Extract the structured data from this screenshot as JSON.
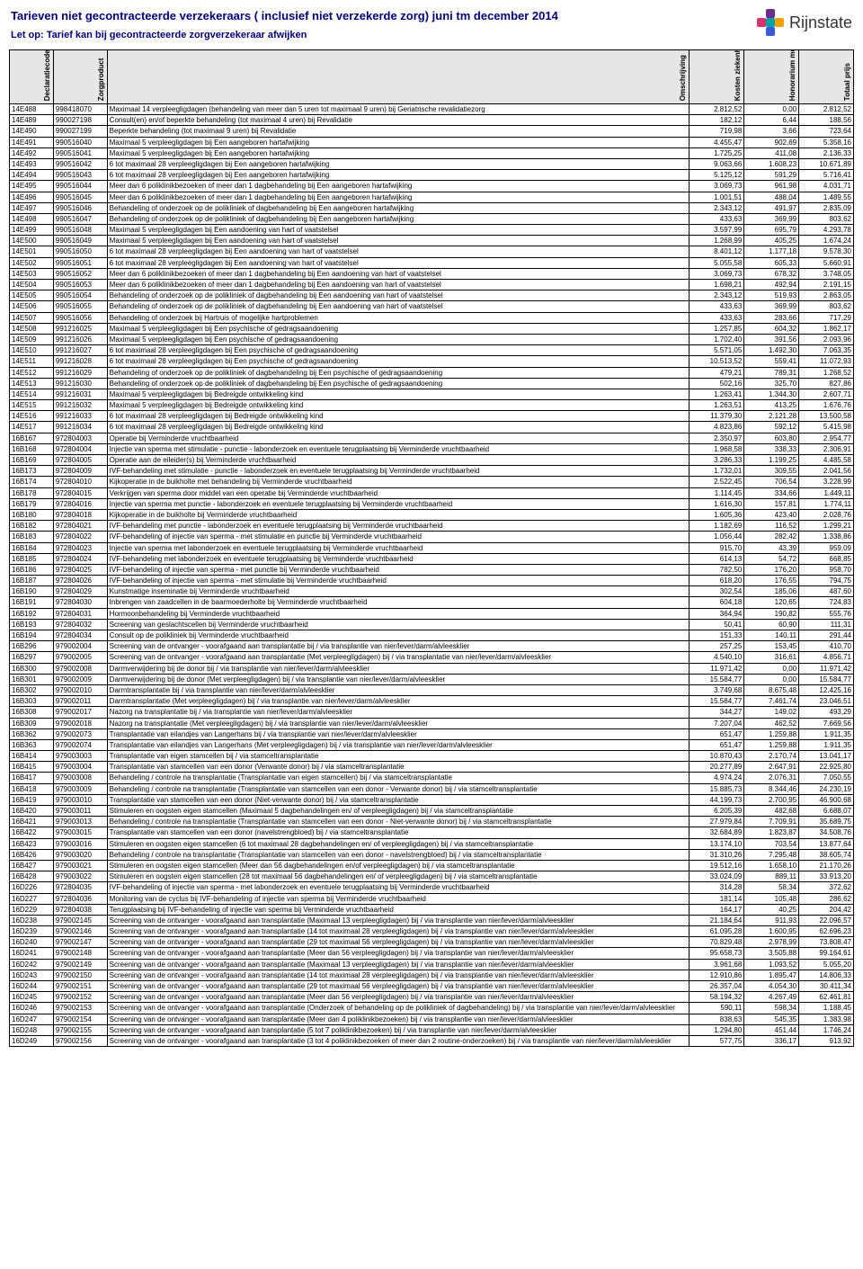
{
  "header": {
    "title": "Tarieven niet gecontracteerde verzekeraars ( inclusief niet verzekerde zorg) juni tm december 2014",
    "subtitle": "Let op: Tarief kan bij gecontracteerde zorgverzekeraar afwijken",
    "title_color": "#000080",
    "logo_name": "Rijnstate",
    "logo_colors": [
      "#6b2d8e",
      "#d6336c",
      "#00a3a3",
      "#f59f00",
      "#3b5bdb"
    ]
  },
  "columns": [
    {
      "key": "decl",
      "label": "Declaratiecode"
    },
    {
      "key": "zorg",
      "label": "Zorgproduct"
    },
    {
      "key": "oms",
      "label": "Omschrijving"
    },
    {
      "key": "kosten",
      "label": "Kosten ziekenhuis"
    },
    {
      "key": "hon",
      "label": "Honorarium medisch specialisten"
    },
    {
      "key": "tot",
      "label": "Totaal prijs"
    }
  ],
  "rows": [
    [
      "14E488",
      "998418070",
      "Maximaal 14 verpleegligdagen (behandeling van meer dan 5 uren tot maximaal 9 uren) bij Geriatrische revalidatiezorg",
      "2.812,52",
      "0,00",
      "2.812,52"
    ],
    [
      "14E489",
      "990027198",
      "Consult(en) en/of beperkte behandeling (tot maximaal 4 uren) bij Revalidatie",
      "182,12",
      "6,44",
      "188,56"
    ],
    [
      "14E490",
      "990027199",
      "Beperkte behandeling (tot maximaal 9 uren) bij Revalidatie",
      "719,98",
      "3,66",
      "723,64"
    ],
    [
      "14E491",
      "990516040",
      "Maximaal 5 verpleegligdagen bij Een aangeboren hartafwijking",
      "4.455,47",
      "902,69",
      "5.358,16"
    ],
    [
      "14E492",
      "990516041",
      "Maximaal 5 verpleegligdagen bij Een aangeboren hartafwijking",
      "1.725,25",
      "411,08",
      "2.136,33"
    ],
    [
      "14E493",
      "990516042",
      "6 tot maximaal 28 verpleegligdagen bij Een aangeboren hartafwijking",
      "9.063,66",
      "1.608,23",
      "10.671,89"
    ],
    [
      "14E494",
      "990516043",
      "6 tot maximaal 28 verpleegligdagen bij Een aangeboren hartafwijking",
      "5.125,12",
      "591,29",
      "5.716,41"
    ],
    [
      "14E495",
      "990516044",
      "Meer dan 6 poliklinikbezoeken of meer dan 1 dagbehandeling bij Een aangeboren hartafwijking",
      "3.069,73",
      "961,98",
      "4.031,71"
    ],
    [
      "14E496",
      "990516045",
      "Meer dan 6 poliklinikbezoeken of meer dan 1 dagbehandeling bij Een aangeboren hartafwijking",
      "1.001,51",
      "488,04",
      "1.489,55"
    ],
    [
      "14E497",
      "990516046",
      "Behandeling of onderzoek op de polikliniek of dagbehandeling bij Een aangeboren hartafwijking",
      "2.343,12",
      "491,97",
      "2.835,09"
    ],
    [
      "14E498",
      "990516047",
      "Behandeling of onderzoek op de polikliniek of dagbehandeling bij Een aangeboren hartafwijking",
      "433,63",
      "369,99",
      "803,62"
    ],
    [
      "14E499",
      "990516048",
      "Maximaal 5 verpleegligdagen bij Een aandoening van hart of vaatstelsel",
      "3.597,99",
      "695,79",
      "4.293,78"
    ],
    [
      "14E500",
      "990516049",
      "Maximaal 5 verpleegligdagen bij Een aandoening van hart of vaatstelsel",
      "1.268,99",
      "405,25",
      "1.674,24"
    ],
    [
      "14E501",
      "990516050",
      "6 tot maximaal 28 verpleegligdagen bij Een aandoening van hart of vaatstelsel",
      "8.401,12",
      "1.177,18",
      "9.578,30"
    ],
    [
      "14E502",
      "990516051",
      "6 tot maximaal 28 verpleegligdagen bij Een aandoening van hart of vaatstelsel",
      "5.055,58",
      "605,33",
      "5.660,91"
    ],
    [
      "14E503",
      "990516052",
      "Meer dan 6 poliklinikbezoeken of meer dan 1 dagbehandeling bij Een aandoening van hart of vaatstelsel",
      "3.069,73",
      "678,32",
      "3.748,05"
    ],
    [
      "14E504",
      "990516053",
      "Meer dan 6 poliklinikbezoeken of meer dan 1 dagbehandeling bij Een aandoening van hart of vaatstelsel",
      "1.698,21",
      "492,94",
      "2.191,15"
    ],
    [
      "14E505",
      "990516054",
      "Behandeling of onderzoek op de polikliniek of dagbehandeling bij Een aandoening van hart of vaatstelsel",
      "2.343,12",
      "519,93",
      "2.863,05"
    ],
    [
      "14E506",
      "990516055",
      "Behandeling of onderzoek op de polikliniek of dagbehandeling bij Een aandoening van hart of vaatstelsel",
      "433,63",
      "369,99",
      "803,62"
    ],
    [
      "14E507",
      "990516056",
      "Behandeling of onderzoek bij Hartruis of mogelijke hartproblemen",
      "433,63",
      "283,66",
      "717,29"
    ],
    [
      "14E508",
      "991216025",
      "Maximaal 5 verpleegligdagen bij Een psychische of gedragsaandoening",
      "1.257,85",
      "604,32",
      "1.862,17"
    ],
    [
      "14E509",
      "991216026",
      "Maximaal 5 verpleegligdagen bij Een psychische of gedragsaandoening",
      "1.702,40",
      "391,56",
      "2.093,96"
    ],
    [
      "14E510",
      "991216027",
      "6 tot maximaal 28 verpleegligdagen bij Een psychische of gedragsaandoening",
      "5.571,05",
      "1.492,30",
      "7.063,35"
    ],
    [
      "14E511",
      "991216028",
      "6 tot maximaal 28 verpleegligdagen bij Een psychische of gedragsaandoening",
      "10.513,52",
      "559,41",
      "11.072,93"
    ],
    [
      "14E512",
      "991216029",
      "Behandeling of onderzoek op de polikliniek of dagbehandeling bij Een psychische of gedragsaandoening",
      "479,21",
      "789,31",
      "1.268,52"
    ],
    [
      "14E513",
      "991216030",
      "Behandeling of onderzoek op de polikliniek of dagbehandeling bij Een psychische of gedragsaandoening",
      "502,16",
      "325,70",
      "827,86"
    ],
    [
      "14E514",
      "991216031",
      "Maximaal 5 verpleegligdagen bij Bedreigde ontwikkeling kind",
      "1.263,41",
      "1.344,30",
      "2.607,71"
    ],
    [
      "14E515",
      "991216032",
      "Maximaal 5 verpleegligdagen bij Bedreigde ontwikkeling kind",
      "1.263,51",
      "413,25",
      "1.676,76"
    ],
    [
      "14E516",
      "991216033",
      "6 tot maximaal 28 verpleegligdagen bij Bedreigde ontwikkeling kind",
      "11.379,30",
      "2.121,28",
      "13.500,58"
    ],
    [
      "14E517",
      "991216034",
      "6 tot maximaal 28 verpleegligdagen bij Bedreigde ontwikkeling kind",
      "4.823,86",
      "592,12",
      "5.415,98"
    ],
    [
      "16B167",
      "972804003",
      "Operatie bij Verminderde vruchtbaarheid",
      "2.350,97",
      "603,80",
      "2.954,77"
    ],
    [
      "16B168",
      "972804004",
      "Injectie van sperma met stimulatie - punctie - labonderzoek en eventuele terugplaatsing bij Verminderde vruchtbaarheid",
      "1.968,58",
      "338,33",
      "2.306,91"
    ],
    [
      "16B169",
      "972804005",
      "Operatie aan de eileider(s) bij Verminderde vruchtbaarheid",
      "3.286,33",
      "1.199,25",
      "4.485,58"
    ],
    [
      "16B173",
      "972804009",
      "IVF-behandeling met stimulatie - punctie - labonderzoek en eventuele terugplaatsing bij Verminderde vruchtbaarheid",
      "1.732,01",
      "309,55",
      "2.041,56"
    ],
    [
      "16B174",
      "972804010",
      "Kijkoperatie in de buikholte met behandeling bij Verminderde vruchtbaarheid",
      "2.522,45",
      "706,54",
      "3.228,99"
    ],
    [
      "16B178",
      "972804015",
      "Verkrijgen van sperma door middel van een operatie bij Verminderde vruchtbaarheid",
      "1.114,45",
      "334,66",
      "1.449,11"
    ],
    [
      "16B179",
      "972804016",
      "Injectie van sperma met punctie - labonderzoek en eventuele terugplaatsing bij Verminderde vruchtbaarheid",
      "1.616,30",
      "157,81",
      "1.774,11"
    ],
    [
      "16B180",
      "972804018",
      "Kijkoperatie in de buikholte bij Verminderde vruchtbaarheid",
      "1.605,36",
      "423,40",
      "2.028,76"
    ],
    [
      "16B182",
      "972804021",
      "IVF-behandeling met punctie - labonderzoek en eventuele terugplaatsing bij Verminderde vruchtbaarheid",
      "1.182,69",
      "116,52",
      "1.299,21"
    ],
    [
      "16B183",
      "972804022",
      "IVF-behandeling of injectie van sperma - met stimulatie en punctie bij Verminderde vruchtbaarheid",
      "1.056,44",
      "282,42",
      "1.338,86"
    ],
    [
      "16B184",
      "972804023",
      "Injectie van sperma met labonderzoek en eventuele terugplaatsing bij Verminderde vruchtbaarheid",
      "915,70",
      "43,39",
      "959,09"
    ],
    [
      "16B185",
      "972804024",
      "IVF-behandeling met labonderzoek en eventuele terugplaatsing bij Verminderde vruchtbaarheid",
      "614,13",
      "54,72",
      "668,85"
    ],
    [
      "16B186",
      "972804025",
      "IVF-behandeling of injectie van sperma - met punctie bij Verminderde vruchtbaarheid",
      "782,50",
      "176,20",
      "958,70"
    ],
    [
      "16B187",
      "972804026",
      "IVF-behandeling of injectie van sperma - met stimulatie bij Verminderde vruchtbaarheid",
      "618,20",
      "176,55",
      "794,75"
    ],
    [
      "16B190",
      "972804029",
      "Kunstmatige inseminatie bij Verminderde vruchtbaarheid",
      "302,54",
      "185,06",
      "487,60"
    ],
    [
      "16B191",
      "972804030",
      "Inbrengen van zaadcellen in de baarmoederholte bij Verminderde vruchtbaarheid",
      "604,18",
      "120,65",
      "724,83"
    ],
    [
      "16B192",
      "972804031",
      "Hormoonbehandeling bij Verminderde vruchtbaarheid",
      "364,94",
      "190,82",
      "555,76"
    ],
    [
      "16B193",
      "972804032",
      "Screening van geslachtscellen bij Verminderde vruchtbaarheid",
      "50,41",
      "60,90",
      "111,31"
    ],
    [
      "16B194",
      "972804034",
      "Consult op de polikliniek bij Verminderde vruchtbaarheid",
      "151,33",
      "140,11",
      "291,44"
    ],
    [
      "16B296",
      "979002004",
      "Screening van de ontvanger - voorafgaand aan transplantatie bij / via transplantie van nier/lever/darm/alvleesklier",
      "257,25",
      "153,45",
      "410,70"
    ],
    [
      "16B297",
      "979002005",
      "Screening van de ontvanger - voorafgaand aan transplantatie (Met verpleegligdagen) bij / via transplantatie van nier/lever/darm/alvleesklier",
      "4.540,10",
      "316,61",
      "4.856,71"
    ],
    [
      "16B300",
      "979002008",
      "Darmverwijdering bij de donor bij / via transplantie van nier/lever/darm/alvleesklier",
      "11.971,42",
      "0,00",
      "11.971,42"
    ],
    [
      "16B301",
      "979002009",
      "Darmverwijdering bij de donor (Met verpleegligdagen) bij / via transplantie van nier/lever/darm/alvleesklier",
      "15.584,77",
      "0,00",
      "15.584,77"
    ],
    [
      "16B302",
      "979002010",
      "Darmtransplantatie bij / via transplantie van nier/lever/darm/alvleesklier",
      "3.749,68",
      "8.675,48",
      "12.425,16"
    ],
    [
      "16B303",
      "979002011",
      "Darmtransplantatie (Met verpleegligdagen) bij / via transplantie van nier/lever/darm/alvleesklier",
      "15.584,77",
      "7.461,74",
      "23.046,51"
    ],
    [
      "16B308",
      "979002017",
      "Nazorg na transplantatie bij / via transplantie van nier/lever/darm/alvleesklier",
      "344,27",
      "149,02",
      "493,29"
    ],
    [
      "16B309",
      "979002018",
      "Nazorg na transplantatie (Met verpleegligdagen) bij / via transplantie van nier/lever/darm/alvleesklier",
      "7.207,04",
      "462,52",
      "7.669,56"
    ],
    [
      "16B362",
      "979002073",
      "Transplantatie van eilandjes van Langerhans bij / via transplantie van nier/lever/darm/alvleesklier",
      "651,47",
      "1.259,88",
      "1.911,35"
    ],
    [
      "16B363",
      "979002074",
      "Transplantatie van eilandjes van Langerhans (Met verpleegligdagen) bij / via transplantie van nier/lever/darm/alvleesklier",
      "651,47",
      "1.259,88",
      "1.911,35"
    ],
    [
      "16B414",
      "979003003",
      "Transplantatie van eigen stamcellen bij / via stamceltransplantatie",
      "10.870,43",
      "2.170,74",
      "13.041,17"
    ],
    [
      "16B415",
      "979003004",
      "Transplantatie van stamcellen van een donor (Verwante donor) bij / via stamceltransplantatie",
      "20.277,89",
      "2.647,91",
      "22.925,80"
    ],
    [
      "16B417",
      "979003008",
      "Behandeling / controle na transplantatie (Transplantatie van eigen stamcellen) bij / via stamceltransplantatie",
      "4.974,24",
      "2.076,31",
      "7.050,55"
    ],
    [
      "16B418",
      "979003009",
      "Behandeling / controle na transplantatie (Transplantatie van stamcellen van een donor - Verwante donor) bij / via stamceltransplantatie",
      "15.885,73",
      "8.344,46",
      "24.230,19"
    ],
    [
      "16B419",
      "979003010",
      "Transplantatie van stamcellen van een donor (Niet-verwante donor) bij / via stamceltransplantatie",
      "44.199,73",
      "2.700,95",
      "46.900,68"
    ],
    [
      "16B420",
      "979003011",
      "Stimuleren en oogsten eigen stamcellen (Maximaal 5 dagbehandelingen en/ of verpleegligdagen) bij / via stamceltransplantatie",
      "6.205,39",
      "482,68",
      "6.688,07"
    ],
    [
      "16B421",
      "979003013",
      "Behandeling / controle na transplantatie (Transplantatie van stamcellen van een donor - Niet-verwante donor) bij / via stamceltransplantatie",
      "27.979,84",
      "7.709,91",
      "35.689,75"
    ],
    [
      "16B422",
      "979003015",
      "Transplantatie van stamcellen van een donor (navelstrengbloed) bij / via stamceltransplantatie",
      "32.684,89",
      "1.823,87",
      "34.508,76"
    ],
    [
      "16B423",
      "979003016",
      "Stimuleren en oogsten eigen stamcellen (6 tot maximaal 28 dagbehandelingen en/ of verpleegligdagen) bij / via stamceltransplantatie",
      "13.174,10",
      "703,54",
      "13.877,64"
    ],
    [
      "16B426",
      "979003020",
      "Behandeling / controle na transplantatie (Transplantatie van stamcellen van een donor - navelstrengbloed) bij / via stamceltransplantatie",
      "31.310,26",
      "7.295,48",
      "38.605,74"
    ],
    [
      "16B427",
      "979003021",
      "Stimuleren en oogsten eigen stamcellen (Meer dan 56 dagbehandelingen en/of verpleegligdagen) bij / via stamceltransplantatie",
      "19.512,16",
      "1.658,10",
      "21.170,26"
    ],
    [
      "16B428",
      "979003022",
      "Stimuleren en oogsten eigen stamcellen (28 tot maximaal 56 dagbehandelingen en/ of verpleegligdagen) bij / via stamceltransplantatie",
      "33.024,09",
      "889,11",
      "33.913,20"
    ],
    [
      "16D226",
      "972804035",
      "IVF-behandeling of injectie van sperma - met labonderzoek en eventuele terugplaatsing bij Verminderde vruchtbaarheid",
      "314,28",
      "58,34",
      "372,62"
    ],
    [
      "16D227",
      "972804036",
      "Monitoring van de cyclus bij IVF-behandeling of injectie van sperma bij Verminderde vruchtbaarheid",
      "181,14",
      "105,48",
      "286,62"
    ],
    [
      "16D229",
      "972804038",
      "Terugplaatsing bij IVF-behandeling of injectie van sperma bij Verminderde vruchtbaarheid",
      "164,17",
      "40,25",
      "204,42"
    ],
    [
      "16D238",
      "979002145",
      "Screening van de ontvanger - voorafgaand aan transplantatie (Maximaal 13 verpleegligdagen) bij / via transplantie van nier/lever/darm/alvleesklier",
      "21.184,64",
      "911,93",
      "22.096,57"
    ],
    [
      "16D239",
      "979002146",
      "Screening van de ontvanger - voorafgaand aan transplantatie (14 tot maximaal 28 verpleegligdagen) bij / via transplantie van nier/lever/darm/alvleesklier",
      "61.095,28",
      "1.600,95",
      "62.696,23"
    ],
    [
      "16D240",
      "979002147",
      "Screening van de ontvanger - voorafgaand aan transplantatie (29 tot maximaal 56 verpleegligdagen) bij / via transplantie van nier/lever/darm/alvleesklier",
      "70.829,48",
      "2.978,99",
      "73.808,47"
    ],
    [
      "16D241",
      "979002148",
      "Screening van de ontvanger - voorafgaand aan transplantatie (Meer dan 56 verpleegligdagen) bij / via transplantie van nier/lever/darm/alvleesklier",
      "95.658,73",
      "3.505,88",
      "99.164,61"
    ],
    [
      "16D242",
      "979002149",
      "Screening van de ontvanger - voorafgaand aan transplantatie (Maximaal 13 verpleegligdagen) bij / via transplantie van nier/lever/darm/alvleesklier",
      "3.961,68",
      "1.093,52",
      "5.055,20"
    ],
    [
      "16D243",
      "979002150",
      "Screening van de ontvanger - voorafgaand aan transplantatie (14 tot maximaal 28 verpleegligdagen) bij / via transplantie van nier/lever/darm/alvleesklier",
      "12.910,86",
      "1.895,47",
      "14.806,33"
    ],
    [
      "16D244",
      "979002151",
      "Screening van de ontvanger - voorafgaand aan transplantatie (29 tot maximaal 56 verpleegligdagen) bij / via transplantie van nier/lever/darm/alvleesklier",
      "26.357,04",
      "4.054,30",
      "30.411,34"
    ],
    [
      "16D245",
      "979002152",
      "Screening van de ontvanger - voorafgaand aan transplantatie (Meer dan 56 verpleegligdagen) bij / via transplantie van nier/lever/darm/alvleesklier",
      "58.194,32",
      "4.267,49",
      "62.461,81"
    ],
    [
      "16D246",
      "979002153",
      "Screening van de ontvanger - voorafgaand aan transplantatie (Onderzoek of behandeling op de polikliniek of dagbehandeling) bij / via transplantie van nier/lever/darm/alvleesklier",
      "590,11",
      "598,34",
      "1.188,45"
    ],
    [
      "16D247",
      "979002154",
      "Screening van de ontvanger - voorafgaand aan transplantatie (Meer dan 4 poliklinikbezoeken) bij / via transplantie van nier/lever/darm/alvleesklier",
      "838,63",
      "545,35",
      "1.383,98"
    ],
    [
      "16D248",
      "979002155",
      "Screening van de ontvanger - voorafgaand aan transplantatie (5 tot 7 poliklinikbezoeken) bij / via transplantie van nier/lever/darm/alvleesklier",
      "1.294,80",
      "451,44",
      "1.746,24"
    ],
    [
      "16D249",
      "979002156",
      "Screening van de ontvanger - voorafgaand aan transplantatie (3 tot 4 poliklinikbezoeken of meer dan 2 routine-onderzoeken) bij / via transplantie van nier/lever/darm/alvleesklier",
      "577,75",
      "336,17",
      "913,92"
    ]
  ]
}
